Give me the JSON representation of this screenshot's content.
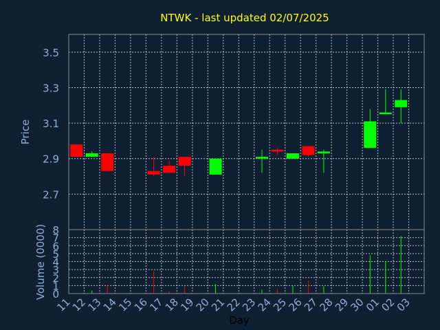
{
  "chart_data": {
    "type": "candlestick",
    "title": "NTWK - last updated 02/07/2025",
    "xlabel": "Day",
    "colors": {
      "background": "#102033",
      "up": "#00ff00",
      "down": "#ff0000",
      "title": "#ffff00",
      "tick": "#8faed8"
    },
    "x": [
      "11",
      "12",
      "13",
      "14",
      "15",
      "16",
      "17",
      "18",
      "19",
      "20",
      "21",
      "22",
      "23",
      "24",
      "25",
      "26",
      "27",
      "28",
      "29",
      "30",
      "01",
      "02",
      "03"
    ],
    "price_panel": {
      "ylabel": "Price",
      "ylim": [
        2.5,
        3.6
      ],
      "yticks": [
        "2.7",
        "2.9",
        "3.1",
        "3.3",
        "3.5"
      ],
      "grid": true,
      "candles": [
        {
          "day": "11",
          "open": 2.98,
          "high": 2.98,
          "low": 2.91,
          "close": 2.91
        },
        {
          "day": "12",
          "open": 2.91,
          "high": 2.94,
          "low": 2.91,
          "close": 2.93
        },
        {
          "day": "13",
          "open": 2.93,
          "high": 2.93,
          "low": 2.83,
          "close": 2.83
        },
        {
          "day": "16",
          "open": 2.83,
          "high": 2.91,
          "low": 2.8,
          "close": 2.81
        },
        {
          "day": "17",
          "open": 2.86,
          "high": 2.89,
          "low": 2.82,
          "close": 2.82
        },
        {
          "day": "18",
          "open": 2.91,
          "high": 2.91,
          "low": 2.8,
          "close": 2.86
        },
        {
          "day": "20",
          "open": 2.81,
          "high": 2.9,
          "low": 2.81,
          "close": 2.9
        },
        {
          "day": "23",
          "open": 2.9,
          "high": 2.95,
          "low": 2.82,
          "close": 2.91
        },
        {
          "day": "24",
          "open": 2.95,
          "high": 2.96,
          "low": 2.92,
          "close": 2.94
        },
        {
          "day": "25",
          "open": 2.9,
          "high": 2.93,
          "low": 2.9,
          "close": 2.93
        },
        {
          "day": "26",
          "open": 2.97,
          "high": 2.97,
          "low": 2.91,
          "close": 2.92
        },
        {
          "day": "27",
          "open": 2.93,
          "high": 2.95,
          "low": 2.82,
          "close": 2.94
        },
        {
          "day": "30",
          "open": 2.96,
          "high": 3.18,
          "low": 2.96,
          "close": 3.11
        },
        {
          "day": "01",
          "open": 3.15,
          "high": 3.29,
          "low": 3.15,
          "close": 3.16
        },
        {
          "day": "02",
          "open": 3.19,
          "high": 3.29,
          "low": 3.1,
          "close": 3.23
        }
      ]
    },
    "volume_panel": {
      "ylabel": "Volume (0000)",
      "ylim": [
        0,
        8
      ],
      "yticks": [
        "0",
        "1",
        "2",
        "3",
        "4",
        "5",
        "6",
        "7",
        "8"
      ],
      "grid": true,
      "bars": [
        {
          "day": "12",
          "value": 0.4,
          "dir": "up"
        },
        {
          "day": "13",
          "value": 1.1,
          "dir": "down"
        },
        {
          "day": "16",
          "value": 2.9,
          "dir": "down"
        },
        {
          "day": "17",
          "value": 0.3,
          "dir": "down"
        },
        {
          "day": "18",
          "value": 0.9,
          "dir": "down"
        },
        {
          "day": "20",
          "value": 1.2,
          "dir": "up"
        },
        {
          "day": "23",
          "value": 0.5,
          "dir": "up"
        },
        {
          "day": "24",
          "value": 0.6,
          "dir": "down"
        },
        {
          "day": "25",
          "value": 1.0,
          "dir": "up"
        },
        {
          "day": "26",
          "value": 1.6,
          "dir": "down"
        },
        {
          "day": "27",
          "value": 0.9,
          "dir": "up"
        },
        {
          "day": "30",
          "value": 4.8,
          "dir": "up"
        },
        {
          "day": "01",
          "value": 4.0,
          "dir": "up"
        },
        {
          "day": "02",
          "value": 7.2,
          "dir": "up"
        }
      ]
    }
  }
}
